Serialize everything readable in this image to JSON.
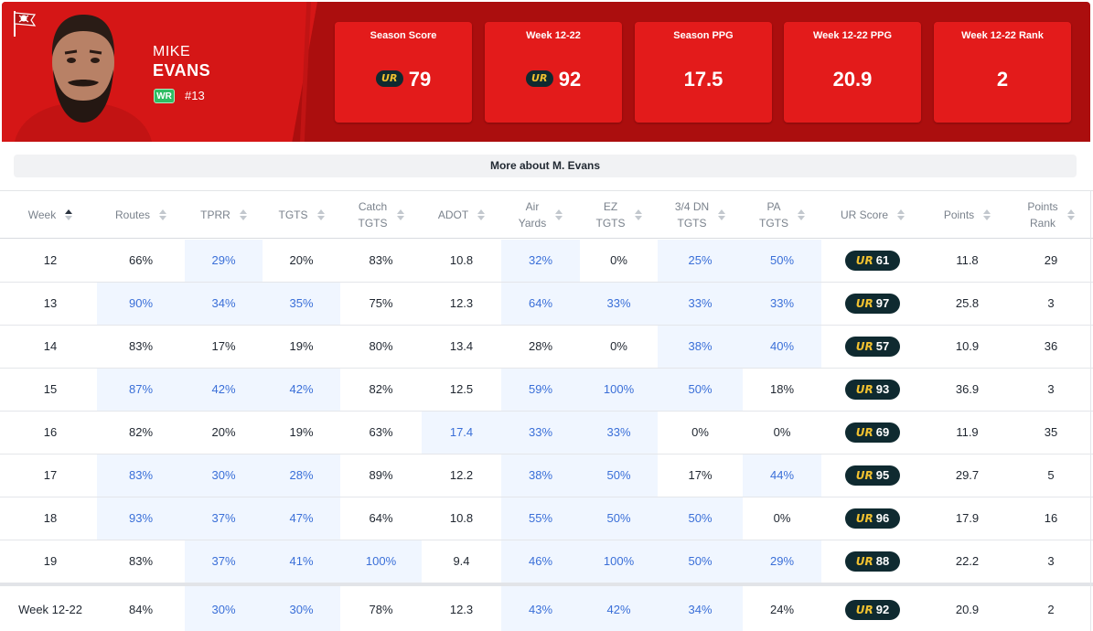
{
  "player": {
    "first_name": "MIKE",
    "last_name": "EVANS",
    "position": "WR",
    "jersey": "#13",
    "team_logo": "buccaneers-flag-logo",
    "headshot": "player-headshot"
  },
  "colors": {
    "header_dark": "#ab0e0e",
    "header_bright": "#d51616",
    "card": "#e31b1b",
    "badge_bg": "#0f2a30",
    "badge_mark": "#f2c230",
    "highlight_bg": "#f0f6ff",
    "highlight_text": "#3a6fd8",
    "position_badge": "#2fbd63"
  },
  "stats": [
    {
      "label": "Season Score",
      "value": "79",
      "ur_logo": true
    },
    {
      "label": "Week 12-22",
      "value": "92",
      "ur_logo": true
    },
    {
      "label": "Season PPG",
      "value": "17.5",
      "ur_logo": false
    },
    {
      "label": "Week 12-22 PPG",
      "value": "20.9",
      "ur_logo": false
    },
    {
      "label": "Week 12-22 Rank",
      "value": "2",
      "ur_logo": false
    }
  ],
  "ur_mark": "UR",
  "more_button": "More about M. Evans",
  "table": {
    "sort_column": "week",
    "sort_direction": "ascending",
    "columns": [
      {
        "key": "week",
        "label": "Week"
      },
      {
        "key": "routes",
        "label": "Routes"
      },
      {
        "key": "tprr",
        "label": "TPRR"
      },
      {
        "key": "tgts",
        "label": "TGTS"
      },
      {
        "key": "catch_tgts",
        "label": "Catch TGTS"
      },
      {
        "key": "adot",
        "label": "ADOT"
      },
      {
        "key": "air_yards",
        "label": "Air Yards"
      },
      {
        "key": "ez_tgts",
        "label": "EZ TGTS"
      },
      {
        "key": "dn34_tgts",
        "label": "3/4 DN TGTS"
      },
      {
        "key": "pa_tgts",
        "label": "PA TGTS"
      },
      {
        "key": "ur_score",
        "label": "UR Score"
      },
      {
        "key": "points",
        "label": "Points"
      },
      {
        "key": "points_rank",
        "label": "Points Rank"
      }
    ],
    "rows": [
      {
        "cells": [
          "12",
          "66%",
          "29%",
          "20%",
          "83%",
          "10.8",
          "32%",
          "0%",
          "25%",
          "50%",
          "61",
          "11.8",
          "29"
        ],
        "highlight": [
          false,
          false,
          true,
          false,
          false,
          false,
          true,
          false,
          true,
          true,
          false,
          false,
          false
        ]
      },
      {
        "cells": [
          "13",
          "90%",
          "34%",
          "35%",
          "75%",
          "12.3",
          "64%",
          "33%",
          "33%",
          "33%",
          "97",
          "25.8",
          "3"
        ],
        "highlight": [
          false,
          true,
          true,
          true,
          false,
          false,
          true,
          true,
          true,
          true,
          false,
          false,
          false
        ]
      },
      {
        "cells": [
          "14",
          "83%",
          "17%",
          "19%",
          "80%",
          "13.4",
          "28%",
          "0%",
          "38%",
          "40%",
          "57",
          "10.9",
          "36"
        ],
        "highlight": [
          false,
          false,
          false,
          false,
          false,
          false,
          false,
          false,
          true,
          true,
          false,
          false,
          false
        ]
      },
      {
        "cells": [
          "15",
          "87%",
          "42%",
          "42%",
          "82%",
          "12.5",
          "59%",
          "100%",
          "50%",
          "18%",
          "93",
          "36.9",
          "3"
        ],
        "highlight": [
          false,
          true,
          true,
          true,
          false,
          false,
          true,
          true,
          true,
          false,
          false,
          false,
          false
        ]
      },
      {
        "cells": [
          "16",
          "82%",
          "20%",
          "19%",
          "63%",
          "17.4",
          "33%",
          "33%",
          "0%",
          "0%",
          "69",
          "11.9",
          "35"
        ],
        "highlight": [
          false,
          false,
          false,
          false,
          false,
          true,
          true,
          true,
          false,
          false,
          false,
          false,
          false
        ]
      },
      {
        "cells": [
          "17",
          "83%",
          "30%",
          "28%",
          "89%",
          "12.2",
          "38%",
          "50%",
          "17%",
          "44%",
          "95",
          "29.7",
          "5"
        ],
        "highlight": [
          false,
          true,
          true,
          true,
          false,
          false,
          true,
          true,
          false,
          true,
          false,
          false,
          false
        ]
      },
      {
        "cells": [
          "18",
          "93%",
          "37%",
          "47%",
          "64%",
          "10.8",
          "55%",
          "50%",
          "50%",
          "0%",
          "96",
          "17.9",
          "16"
        ],
        "highlight": [
          false,
          true,
          true,
          true,
          false,
          false,
          true,
          true,
          true,
          false,
          false,
          false,
          false
        ]
      },
      {
        "cells": [
          "19",
          "83%",
          "37%",
          "41%",
          "100%",
          "9.4",
          "46%",
          "100%",
          "50%",
          "29%",
          "88",
          "22.2",
          "3"
        ],
        "highlight": [
          false,
          false,
          true,
          true,
          true,
          false,
          true,
          true,
          true,
          true,
          false,
          false,
          false
        ]
      }
    ],
    "summary": {
      "cells": [
        "Week 12-22",
        "84%",
        "30%",
        "30%",
        "78%",
        "12.3",
        "43%",
        "42%",
        "34%",
        "24%",
        "92",
        "20.9",
        "2"
      ],
      "highlight": [
        false,
        false,
        true,
        true,
        false,
        false,
        true,
        true,
        true,
        false,
        false,
        false,
        false
      ]
    }
  }
}
